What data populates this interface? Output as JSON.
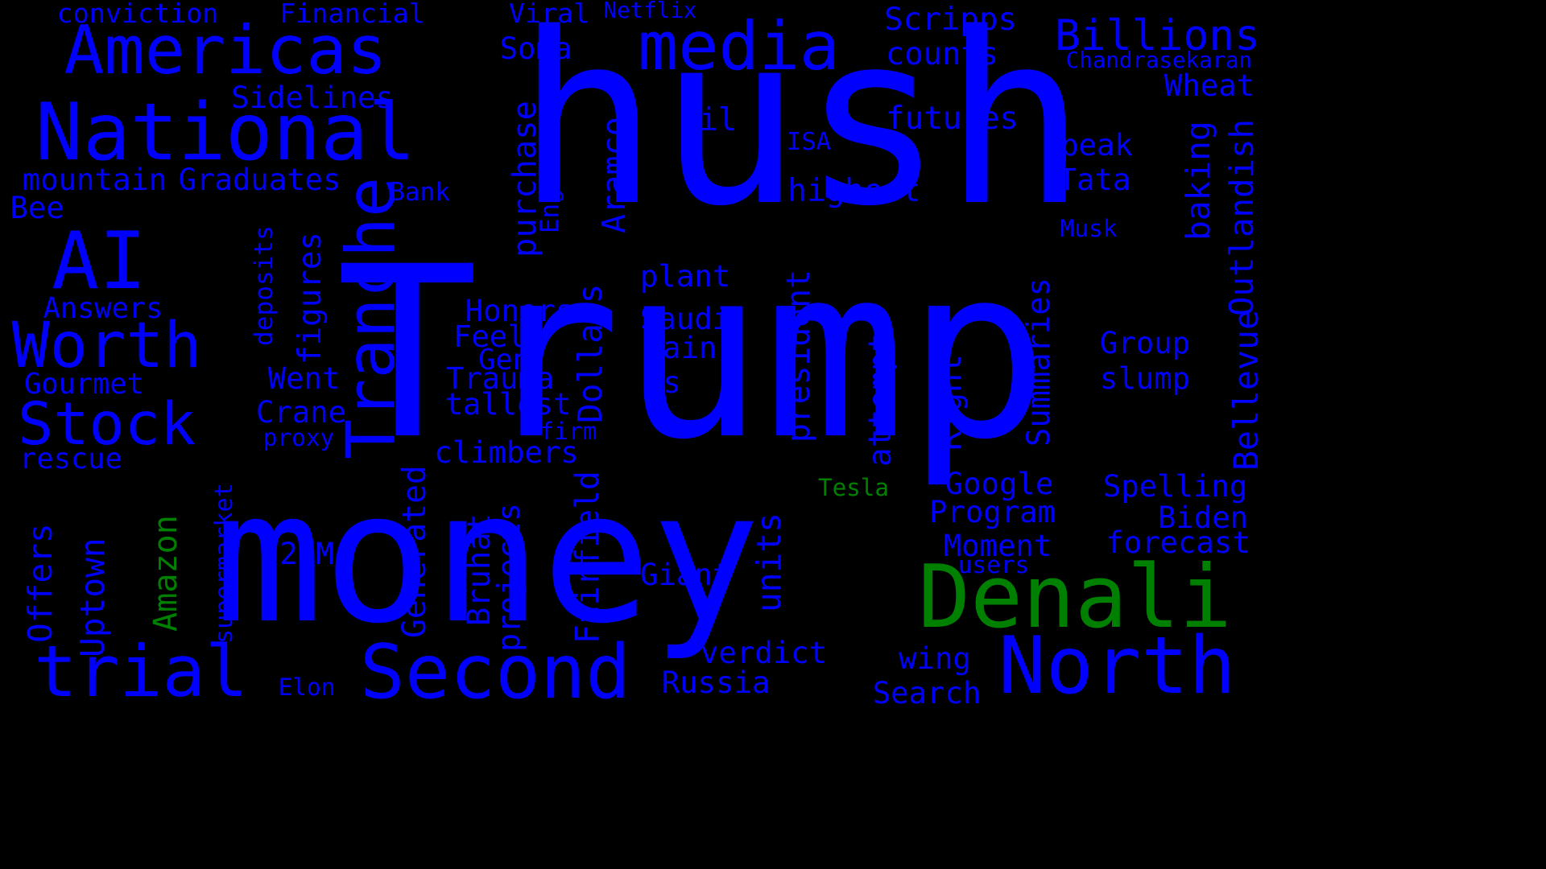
{
  "colors": {
    "background": "#000000",
    "primary": "#0000ff",
    "accent": "#008000"
  },
  "words": [
    {
      "text": "Trump",
      "color": "#0000ff"
    },
    {
      "text": "hush",
      "color": "#0000ff"
    },
    {
      "text": "money",
      "color": "#0000ff"
    },
    {
      "text": "Americas",
      "color": "#0000ff"
    },
    {
      "text": "National",
      "color": "#0000ff"
    },
    {
      "text": "media",
      "color": "#0000ff"
    },
    {
      "text": "Denali",
      "color": "#008000"
    },
    {
      "text": "North",
      "color": "#0000ff"
    },
    {
      "text": "Second",
      "color": "#0000ff"
    },
    {
      "text": "trial",
      "color": "#0000ff"
    },
    {
      "text": "AI",
      "color": "#0000ff"
    },
    {
      "text": "Worth",
      "color": "#0000ff"
    },
    {
      "text": "Stock",
      "color": "#0000ff"
    },
    {
      "text": "Tranche",
      "color": "#0000ff"
    },
    {
      "text": "Billions",
      "color": "#0000ff"
    },
    {
      "text": "conviction",
      "color": "#0000ff"
    },
    {
      "text": "Financial",
      "color": "#0000ff"
    },
    {
      "text": "Viral",
      "color": "#0000ff"
    },
    {
      "text": "Netflix",
      "color": "#0000ff"
    },
    {
      "text": "Scripps",
      "color": "#0000ff"
    },
    {
      "text": "counts",
      "color": "#0000ff"
    },
    {
      "text": "Chandrasekaran",
      "color": "#0000ff"
    },
    {
      "text": "Wheat",
      "color": "#0000ff"
    },
    {
      "text": "Soma",
      "color": "#0000ff"
    },
    {
      "text": "Sidelines",
      "color": "#0000ff"
    },
    {
      "text": "mountain",
      "color": "#0000ff"
    },
    {
      "text": "Graduates",
      "color": "#0000ff"
    },
    {
      "text": "Bee",
      "color": "#0000ff"
    },
    {
      "text": "Bank",
      "color": "#0000ff"
    },
    {
      "text": "England",
      "color": "#0000ff"
    },
    {
      "text": "purchase",
      "color": "#0000ff"
    },
    {
      "text": "Aramco",
      "color": "#0000ff"
    },
    {
      "text": "Oil",
      "color": "#0000ff"
    },
    {
      "text": "ISA",
      "color": "#0000ff"
    },
    {
      "text": "futures",
      "color": "#0000ff"
    },
    {
      "text": "highest",
      "color": "#0000ff"
    },
    {
      "text": "peak",
      "color": "#0000ff"
    },
    {
      "text": "Tata",
      "color": "#0000ff"
    },
    {
      "text": "Musk",
      "color": "#0000ff"
    },
    {
      "text": "baking",
      "color": "#0000ff"
    },
    {
      "text": "Outlandish",
      "color": "#0000ff"
    },
    {
      "text": "Bellevue",
      "color": "#0000ff"
    },
    {
      "text": "Answers",
      "color": "#0000ff"
    },
    {
      "text": "deposits",
      "color": "#0000ff"
    },
    {
      "text": "figures",
      "color": "#0000ff"
    },
    {
      "text": "Gourmet",
      "color": "#0000ff"
    },
    {
      "text": "Went",
      "color": "#0000ff"
    },
    {
      "text": "Crane",
      "color": "#0000ff"
    },
    {
      "text": "proxy",
      "color": "#0000ff"
    },
    {
      "text": "rescue",
      "color": "#0000ff"
    },
    {
      "text": "Honors",
      "color": "#0000ff"
    },
    {
      "text": "Feels",
      "color": "#0000ff"
    },
    {
      "text": "Gen",
      "color": "#0000ff"
    },
    {
      "text": "Trauma",
      "color": "#0000ff"
    },
    {
      "text": "tallest",
      "color": "#0000ff"
    },
    {
      "text": "climbers",
      "color": "#0000ff"
    },
    {
      "text": "Dollars",
      "color": "#0000ff"
    },
    {
      "text": "firm",
      "color": "#0000ff"
    },
    {
      "text": "plant",
      "color": "#0000ff"
    },
    {
      "text": "Saudi",
      "color": "#0000ff"
    },
    {
      "text": "rain",
      "color": "#0000ff"
    },
    {
      "text": "s",
      "color": "#0000ff"
    },
    {
      "text": "president",
      "color": "#0000ff"
    },
    {
      "text": "attempts",
      "color": "#0000ff"
    },
    {
      "text": "Right",
      "color": "#0000ff"
    },
    {
      "text": "Summaries",
      "color": "#0000ff"
    },
    {
      "text": "Group",
      "color": "#0000ff"
    },
    {
      "text": "slump",
      "color": "#0000ff"
    },
    {
      "text": "Tesla",
      "color": "#008000"
    },
    {
      "text": "Google",
      "color": "#0000ff"
    },
    {
      "text": "Program",
      "color": "#0000ff"
    },
    {
      "text": "Spelling",
      "color": "#0000ff"
    },
    {
      "text": "Biden",
      "color": "#0000ff"
    },
    {
      "text": "Moment",
      "color": "#0000ff"
    },
    {
      "text": "forecast",
      "color": "#0000ff"
    },
    {
      "text": "users",
      "color": "#0000ff"
    },
    {
      "text": "Offers",
      "color": "#0000ff"
    },
    {
      "text": "Uptown",
      "color": "#0000ff"
    },
    {
      "text": "Amazon",
      "color": "#008000"
    },
    {
      "text": "supermarket",
      "color": "#0000ff"
    },
    {
      "text": "29M",
      "color": "#0000ff"
    },
    {
      "text": "Generated",
      "color": "#0000ff"
    },
    {
      "text": "Bruhat",
      "color": "#0000ff"
    },
    {
      "text": "projects",
      "color": "#0000ff"
    },
    {
      "text": "Fairfield",
      "color": "#0000ff"
    },
    {
      "text": "units",
      "color": "#0000ff"
    },
    {
      "text": "Giant",
      "color": "#0000ff"
    },
    {
      "text": "verdict",
      "color": "#0000ff"
    },
    {
      "text": "Russia",
      "color": "#0000ff"
    },
    {
      "text": "Elon",
      "color": "#0000ff"
    },
    {
      "text": "wing",
      "color": "#0000ff"
    },
    {
      "text": "Search",
      "color": "#0000ff"
    }
  ]
}
